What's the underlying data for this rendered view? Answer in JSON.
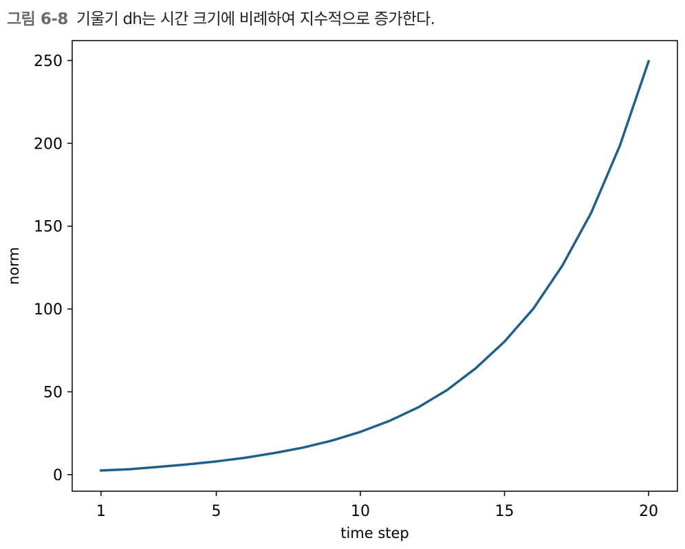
{
  "figure": {
    "number": "그림 6-8",
    "caption": "기울기 dh는 시간 크기에 비례하여 지수적으로 증가한다."
  },
  "colors": {
    "line": "#1f5f8b",
    "axes": "#000000",
    "figure_number": "#6b6b6b"
  },
  "chart_data": {
    "type": "line",
    "title": "",
    "xlabel": "time step",
    "ylabel": "norm",
    "xlim": [
      0.0,
      21.0
    ],
    "ylim": [
      -10,
      262
    ],
    "xticks": [
      1,
      5,
      10,
      15,
      20
    ],
    "yticks": [
      0,
      50,
      100,
      150,
      200,
      250
    ],
    "grid": false,
    "legend": "none",
    "series": [
      {
        "x": [
          1,
          2,
          3,
          4,
          5,
          6,
          7,
          8,
          9,
          10,
          11,
          12,
          13,
          14,
          15,
          16,
          17,
          18,
          19,
          20
        ],
        "values": [
          2.5,
          3.3,
          4.7,
          6.2,
          8.0,
          10.2,
          13.0,
          16.3,
          20.5,
          25.8,
          32.4,
          40.6,
          51.0,
          64.2,
          80.3,
          100.2,
          126.0,
          157.8,
          198.5,
          249.5
        ]
      }
    ]
  }
}
